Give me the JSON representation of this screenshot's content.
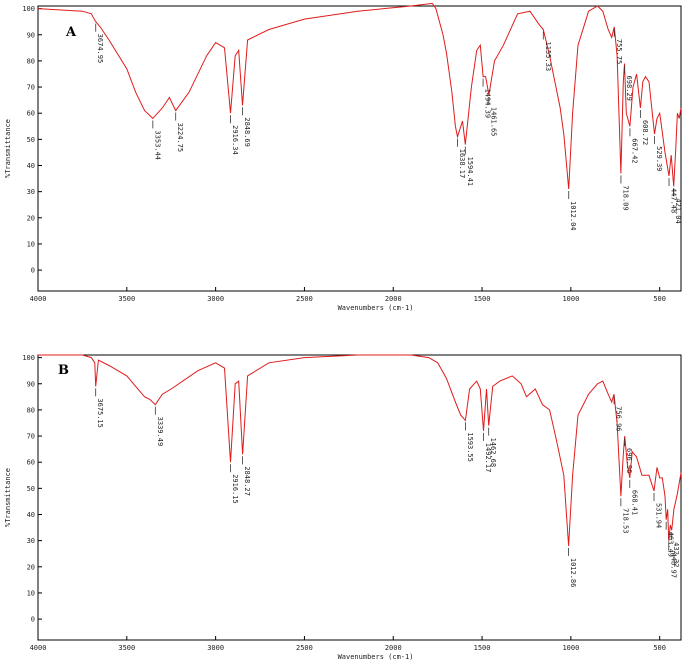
{
  "chart_data": [
    {
      "type": "line",
      "panel_label": "A",
      "xlabel": "Wavenumbers (cm-1)",
      "ylabel": "%Transmittance",
      "xlim": [
        4000,
        380
      ],
      "ylim": [
        -8,
        101
      ],
      "x_ticks": [
        4000,
        3500,
        3000,
        2500,
        2000,
        1500,
        1000,
        500
      ],
      "y_ticks": [
        0,
        10,
        20,
        30,
        40,
        50,
        60,
        70,
        80,
        90,
        100
      ],
      "grid": false,
      "series": [
        {
          "color": "#e01b1b",
          "x": [
            4000,
            3750,
            3700,
            3674.95,
            3650,
            3600,
            3500,
            3450,
            3400,
            3353.44,
            3300,
            3260,
            3224.75,
            3150,
            3050,
            3000,
            2950,
            2916.34,
            2890,
            2870,
            2848.69,
            2820,
            2700,
            2500,
            2200,
            1900,
            1780,
            1760,
            1720,
            1700,
            1670,
            1650,
            1638.17,
            1610,
            1594.41,
            1560,
            1530,
            1510,
            1494.39,
            1480,
            1461.65,
            1430,
            1380,
            1300,
            1230,
            1180,
            1155.33,
            1120,
            1060,
            1040,
            1012.04,
            990,
            960,
            900,
            850,
            820,
            790,
            770,
            755.75,
            740,
            718.09,
            705,
            698.29,
            688,
            667.42,
            650,
            630,
            608.72,
            595,
            580,
            560,
            529.39,
            515,
            500,
            490,
            470,
            447.48,
            435,
            421.04,
            410,
            400,
            390,
            380
          ],
          "y": [
            100,
            99,
            98,
            95,
            93,
            88,
            77,
            68,
            61,
            58,
            62,
            66,
            61,
            68,
            82,
            87,
            85,
            60,
            82,
            84,
            63,
            88,
            92,
            96,
            99,
            101,
            102,
            100,
            90,
            83,
            68,
            55,
            51,
            57,
            48,
            70,
            84,
            86,
            74,
            74,
            67,
            80,
            86,
            98,
            99,
            94,
            92,
            82,
            62,
            52,
            31,
            60,
            86,
            99,
            101,
            99,
            92,
            89,
            93,
            82,
            37,
            72,
            79,
            60,
            55,
            70,
            75,
            62,
            72,
            74,
            72,
            52,
            58,
            60,
            55,
            45,
            36,
            44,
            32,
            46,
            60,
            58,
            62
          ]
        }
      ],
      "peak_labels": [
        {
          "x": 3674.95,
          "text": "3674.95"
        },
        {
          "x": 3353.44,
          "text": "3353.44"
        },
        {
          "x": 3224.75,
          "text": "3224.75"
        },
        {
          "x": 2916.34,
          "text": "2916.34"
        },
        {
          "x": 2848.69,
          "text": "2848.69"
        },
        {
          "x": 1638.17,
          "text": "1638.17"
        },
        {
          "x": 1594.41,
          "text": "1594.41"
        },
        {
          "x": 1494.39,
          "text": "1494.39"
        },
        {
          "x": 1461.65,
          "text": "1461.65"
        },
        {
          "x": 1155.33,
          "text": "1155.33"
        },
        {
          "x": 1012.04,
          "text": "1012.04"
        },
        {
          "x": 755.75,
          "text": "755.75"
        },
        {
          "x": 718.09,
          "text": "718.09"
        },
        {
          "x": 698.29,
          "text": "698.29"
        },
        {
          "x": 667.42,
          "text": "667.42"
        },
        {
          "x": 608.72,
          "text": "608.72"
        },
        {
          "x": 529.39,
          "text": "529.39"
        },
        {
          "x": 447.48,
          "text": "447.48"
        },
        {
          "x": 421.04,
          "text": "421.04"
        }
      ]
    },
    {
      "type": "line",
      "panel_label": "B",
      "xlabel": "Wavenumbers (cm-1)",
      "ylabel": "%Transmittance",
      "xlim": [
        4000,
        380
      ],
      "ylim": [
        -8,
        101
      ],
      "x_ticks": [
        4000,
        3500,
        3000,
        2500,
        2000,
        1500,
        1000,
        500
      ],
      "y_ticks": [
        0,
        10,
        20,
        30,
        40,
        50,
        60,
        70,
        80,
        90,
        100
      ],
      "grid": false,
      "series": [
        {
          "color": "#e01b1b",
          "x": [
            4000,
            3750,
            3700,
            3680,
            3675.15,
            3660,
            3600,
            3500,
            3450,
            3400,
            3370,
            3339.49,
            3300,
            3250,
            3100,
            3000,
            2950,
            2916.15,
            2890,
            2870,
            2848.27,
            2820,
            2700,
            2500,
            2200,
            1900,
            1800,
            1750,
            1700,
            1650,
            1620,
            1593.55,
            1570,
            1530,
            1510,
            1492.17,
            1475,
            1462.68,
            1440,
            1400,
            1330,
            1280,
            1250,
            1200,
            1160,
            1120,
            1080,
            1040,
            1012.86,
            990,
            960,
            900,
            850,
            820,
            790,
            770,
            756.96,
            740,
            718.53,
            705,
            696.96,
            682,
            668.41,
            655,
            630,
            600,
            560,
            531.94,
            515,
            500,
            485,
            470,
            463.49,
            455,
            448.97,
            440,
            432.32,
            420,
            400,
            390,
            380
          ],
          "y": [
            101,
            101,
            100,
            98,
            89,
            99,
            97,
            93,
            89,
            85,
            84,
            82,
            86,
            88,
            95,
            98,
            96,
            60,
            90,
            91,
            63,
            93,
            98,
            100,
            101,
            101,
            100,
            98,
            92,
            83,
            78,
            76,
            88,
            91,
            88,
            72,
            88,
            74,
            89,
            91,
            93,
            90,
            85,
            88,
            82,
            80,
            68,
            55,
            28,
            55,
            78,
            86,
            90,
            91,
            86,
            83,
            86,
            75,
            47,
            63,
            70,
            59,
            54,
            64,
            62,
            55,
            55,
            49,
            58,
            54,
            54,
            47,
            38,
            42,
            30,
            36,
            34,
            42,
            48,
            52,
            56
          ]
        }
      ],
      "peak_labels": [
        {
          "x": 3675.15,
          "text": "3675.15"
        },
        {
          "x": 3339.49,
          "text": "3339.49"
        },
        {
          "x": 2916.15,
          "text": "2916.15"
        },
        {
          "x": 2848.27,
          "text": "2848.27"
        },
        {
          "x": 1593.55,
          "text": "1593.55"
        },
        {
          "x": 1492.17,
          "text": "1492.17"
        },
        {
          "x": 1462.68,
          "text": "1462.68"
        },
        {
          "x": 1012.86,
          "text": "1012.86"
        },
        {
          "x": 756.96,
          "text": "756.96"
        },
        {
          "x": 718.53,
          "text": "718.53"
        },
        {
          "x": 696.96,
          "text": "696.96"
        },
        {
          "x": 668.41,
          "text": "668.41"
        },
        {
          "x": 531.94,
          "text": "531.94"
        },
        {
          "x": 463.49,
          "text": "463.49"
        },
        {
          "x": 448.97,
          "text": "448.97"
        },
        {
          "x": 432.32,
          "text": "432.32"
        }
      ]
    }
  ]
}
